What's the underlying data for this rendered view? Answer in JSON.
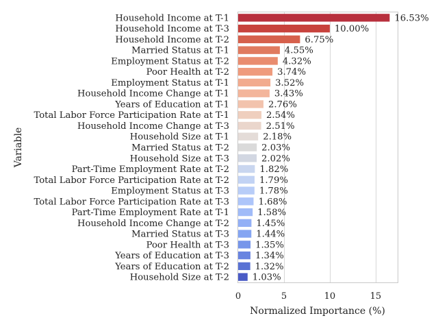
{
  "chart_data": {
    "type": "bar",
    "orientation": "horizontal",
    "title": "",
    "xlabel": "Normalized Importance (%)",
    "ylabel": "Variable",
    "xlim": [
      0,
      17.4
    ],
    "xticks": [
      0,
      5,
      10,
      15
    ],
    "grid": "vertical",
    "categories": [
      "Household Income at T-1",
      "Household Income at T-3",
      "Household Income at T-2",
      "Married Status at T-1",
      "Employment Status at T-2",
      "Poor Health at T-2",
      "Employment Status at T-1",
      "Household Income Change at T-1",
      "Years of Education at T-1",
      "Total Labor Force Participation Rate at T-1",
      "Household Income Change at T-3",
      "Household Size at T-1",
      "Married Status at T-2",
      "Household Size at T-3",
      "Part-Time Employment Rate at T-2",
      "Total Labor Force Participation Rate at T-2",
      "Employment Status at T-3",
      "Total Labor Force Participation Rate at T-3",
      "Part-Time Employment Rate at T-1",
      "Household Income Change at T-2",
      "Married Status at T-3",
      "Poor Health at T-3",
      "Years of Education at T-3",
      "Years of Education at T-2",
      "Household Size at T-2"
    ],
    "values": [
      16.53,
      10.0,
      6.75,
      4.55,
      4.32,
      3.74,
      3.52,
      3.43,
      2.76,
      2.54,
      2.51,
      2.18,
      2.03,
      2.02,
      1.82,
      1.79,
      1.78,
      1.68,
      1.58,
      1.45,
      1.44,
      1.35,
      1.34,
      1.32,
      1.03
    ],
    "value_labels": [
      "16.53%",
      "10.00%",
      "6.75%",
      "4.55%",
      "4.32%",
      "3.74%",
      "3.52%",
      "3.43%",
      "2.76%",
      "2.54%",
      "2.51%",
      "2.18%",
      "2.03%",
      "2.02%",
      "1.82%",
      "1.79%",
      "1.78%",
      "1.68%",
      "1.58%",
      "1.45%",
      "1.44%",
      "1.35%",
      "1.34%",
      "1.32%",
      "1.03%"
    ],
    "colors": [
      "#b8303d",
      "#c8423d",
      "#d6604c",
      "#e07a5f",
      "#e98c6f",
      "#ef9b7d",
      "#f2ab8e",
      "#f3b59b",
      "#f2c3ad",
      "#efcfbe",
      "#ead6cc",
      "#e4dcd8",
      "#dadada",
      "#d2d7e2",
      "#c9d6ef",
      "#c2d3f4",
      "#b8cdf8",
      "#adc5fa",
      "#a0bbf8",
      "#93b0f6",
      "#85a5f2",
      "#7796ea",
      "#6984e0",
      "#5a72d4",
      "#4a5bc6"
    ]
  }
}
